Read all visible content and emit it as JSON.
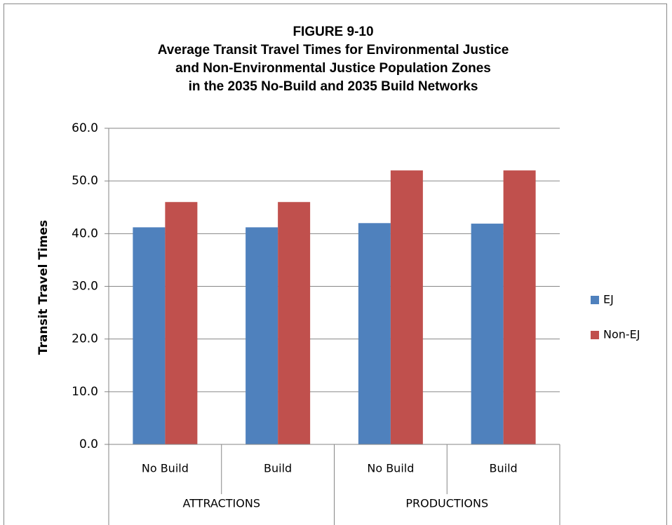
{
  "chart_data": {
    "type": "bar",
    "title": [
      "FIGURE 9-10",
      "Average Transit Travel Times for Environmental Justice",
      "and Non-Environmental Justice Population Zones",
      "in the 2035 No-Build and 2035 Build Networks"
    ],
    "y_label": "Transit Travel Times",
    "categories": [
      "No Build",
      "Build",
      "No Build",
      "Build"
    ],
    "category_groups": [
      "ATTRACTIONS",
      "PRODUCTIONS"
    ],
    "series": [
      {
        "name": "EJ",
        "color": "#4f81bd",
        "values": [
          41.2,
          41.2,
          42.0,
          41.9
        ]
      },
      {
        "name": "Non-EJ",
        "color": "#c0504d",
        "values": [
          46.0,
          46.0,
          52.0,
          52.0
        ]
      }
    ],
    "ylim": [
      0,
      60
    ],
    "yticks": [
      {
        "value": 0,
        "label": "0.0"
      },
      {
        "value": 10,
        "label": "10.0"
      },
      {
        "value": 20,
        "label": "20.0"
      },
      {
        "value": 30,
        "label": "30.0"
      },
      {
        "value": 40,
        "label": "40.0"
      },
      {
        "value": 50,
        "label": "50.0"
      },
      {
        "value": 60,
        "label": "60.0"
      }
    ],
    "grid": true,
    "legend": "right"
  }
}
